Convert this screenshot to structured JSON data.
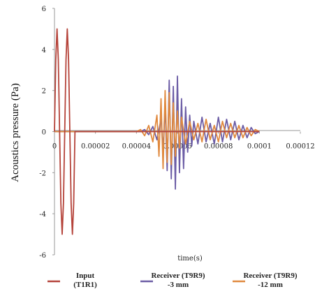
{
  "chart_data": {
    "type": "line",
    "title": "",
    "xlabel": "time(s)",
    "ylabel": "Acoustics pressure (Pa)",
    "xlim": [
      0,
      0.00012
    ],
    "ylim": [
      -6,
      6
    ],
    "x_ticks": [
      0,
      2e-05,
      4e-05,
      6e-05,
      8e-05,
      0.0001,
      0.00012
    ],
    "x_tick_labels": [
      "0",
      "0.00002",
      "0.00004",
      "0.00006",
      "0.00008",
      "0.0001",
      "0.00012"
    ],
    "y_ticks": [
      6,
      4,
      2,
      0,
      -2,
      -4,
      -6
    ],
    "y_tick_labels": [
      "6",
      "4",
      "2",
      "0",
      "-2",
      "-4",
      "-6"
    ],
    "grid": false,
    "legend_position": "bottom",
    "series": [
      {
        "name_lines": [
          "Input",
          "(T1R1)"
        ],
        "color": "#b5433a",
        "x": [
          0,
          6.25e-07,
          1.25e-06,
          1.875e-06,
          2.5e-06,
          3.125e-06,
          3.75e-06,
          4.375e-06,
          5e-06,
          5.625e-06,
          6.25e-06,
          6.875e-06,
          7.5e-06,
          8.125e-06,
          8.75e-06,
          9.375e-06,
          1e-05,
          1.02e-05,
          0.0001
        ],
        "values": [
          0,
          3.5,
          5,
          3.5,
          0,
          -3.5,
          -5,
          -3.5,
          0,
          3.5,
          5,
          3.5,
          0,
          -3.5,
          -5,
          -3.5,
          0,
          0,
          0
        ]
      },
      {
        "name_lines": [
          "Receiver (T9R9)",
          "-3 mm"
        ],
        "color": "#6b5ca5",
        "x": [
          0,
          4.2e-05,
          4.4e-05,
          4.6e-05,
          4.8e-05,
          5e-05,
          5.2e-05,
          5.3e-05,
          5.4e-05,
          5.5e-05,
          5.6e-05,
          5.7e-05,
          5.8e-05,
          5.9e-05,
          6e-05,
          6.1e-05,
          6.2e-05,
          6.3e-05,
          6.4e-05,
          6.5e-05,
          6.6e-05,
          6.7e-05,
          6.8e-05,
          7e-05,
          7.2e-05,
          7.4e-05,
          7.6e-05,
          7.8e-05,
          8e-05,
          8.2e-05,
          8.4e-05,
          8.6e-05,
          8.8e-05,
          9e-05,
          9.2e-05,
          9.4e-05,
          9.6e-05,
          9.8e-05,
          0.0001
        ],
        "values": [
          0,
          0,
          0.1,
          -0.15,
          0.25,
          -0.4,
          0.6,
          -0.9,
          1.3,
          -1.9,
          2.5,
          -2.3,
          2.2,
          -2.8,
          2.7,
          -2.0,
          1.6,
          -1.8,
          1.2,
          -1.0,
          0.8,
          -0.7,
          0.5,
          -0.6,
          0.7,
          -0.5,
          0.4,
          -0.6,
          0.7,
          -0.5,
          0.6,
          -0.4,
          0.5,
          -0.4,
          0.3,
          -0.3,
          0.2,
          -0.1,
          0
        ]
      },
      {
        "name_lines": [
          "Receiver (T9R9)",
          "-12 mm"
        ],
        "color": "#e0893e",
        "x": [
          0,
          4e-05,
          4.2e-05,
          4.4e-05,
          4.6e-05,
          4.8e-05,
          5e-05,
          5.1e-05,
          5.2e-05,
          5.3e-05,
          5.4e-05,
          5.5e-05,
          5.6e-05,
          5.7e-05,
          5.8e-05,
          5.9e-05,
          6e-05,
          6.1e-05,
          6.2e-05,
          6.4e-05,
          6.6e-05,
          6.8e-05,
          7e-05,
          7.2e-05,
          7.4e-05,
          7.6e-05,
          7.8e-05,
          8e-05,
          8.2e-05,
          8.4e-05,
          8.6e-05,
          8.8e-05,
          9e-05,
          9.2e-05,
          9.4e-05,
          9.6e-05,
          9.8e-05,
          0.0001
        ],
        "values": [
          0,
          0,
          0.1,
          -0.2,
          0.3,
          -0.5,
          0.8,
          -1.2,
          1.6,
          -1.8,
          2.0,
          -1.5,
          1.9,
          -1.6,
          1.4,
          -1.2,
          1.0,
          -0.8,
          0.7,
          -0.6,
          0.5,
          -0.4,
          0.4,
          -0.5,
          0.6,
          -0.4,
          0.3,
          -0.5,
          0.5,
          -0.3,
          0.4,
          -0.3,
          0.3,
          -0.3,
          0.2,
          -0.2,
          0.1,
          0
        ]
      }
    ]
  }
}
